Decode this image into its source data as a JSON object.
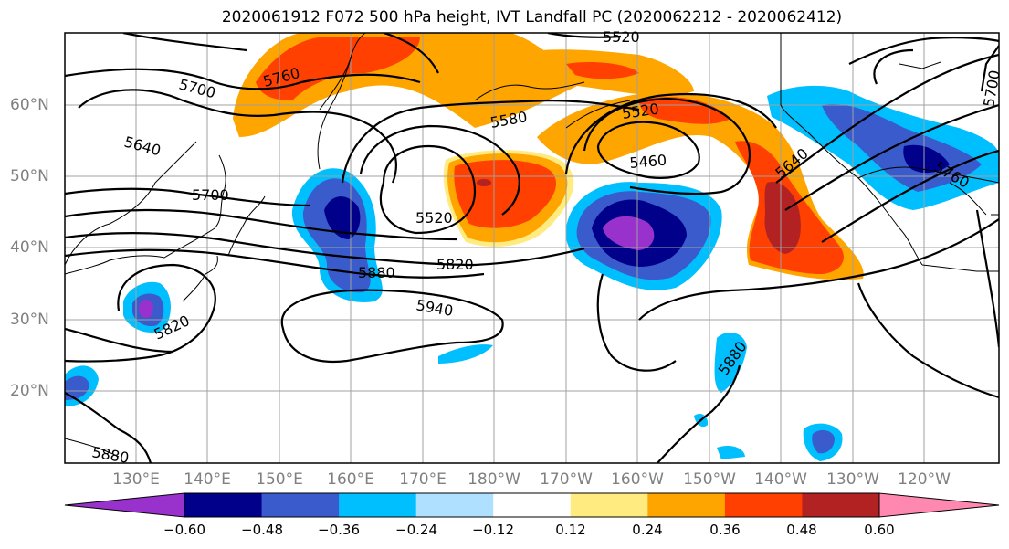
{
  "title": "2020061912 F072 500 hPa height, IVT Landfall PC (2020062212 - 2020062412)",
  "lat_labels": [
    "60°N",
    "50°N",
    "40°N",
    "30°N",
    "20°N"
  ],
  "lon_labels": [
    "130°E",
    "140°E",
    "150°E",
    "160°E",
    "170°E",
    "180°W",
    "170°W",
    "160°W",
    "150°W",
    "140°W",
    "130°W",
    "120°W"
  ],
  "contour_labels": [
    "5520",
    "5760",
    "5700",
    "5640",
    "5580",
    "5520",
    "5460",
    "5640",
    "5760",
    "5700",
    "5700",
    "5520",
    "5880",
    "5820",
    "5940",
    "5820",
    "5880",
    "5880"
  ],
  "colorbar": {
    "ticks": [
      "−0.60",
      "−0.48",
      "−0.36",
      "−0.24",
      "−0.12",
      "0.12",
      "0.24",
      "0.36",
      "0.48",
      "0.60"
    ],
    "colors": [
      "#9932CC",
      "#00008B",
      "#3A5BCB",
      "#00BFFF",
      "#B0E0FF",
      "#FFFFFF",
      "#FFEB80",
      "#FFA500",
      "#FF4000",
      "#B22222",
      "#FF88B0"
    ]
  }
}
